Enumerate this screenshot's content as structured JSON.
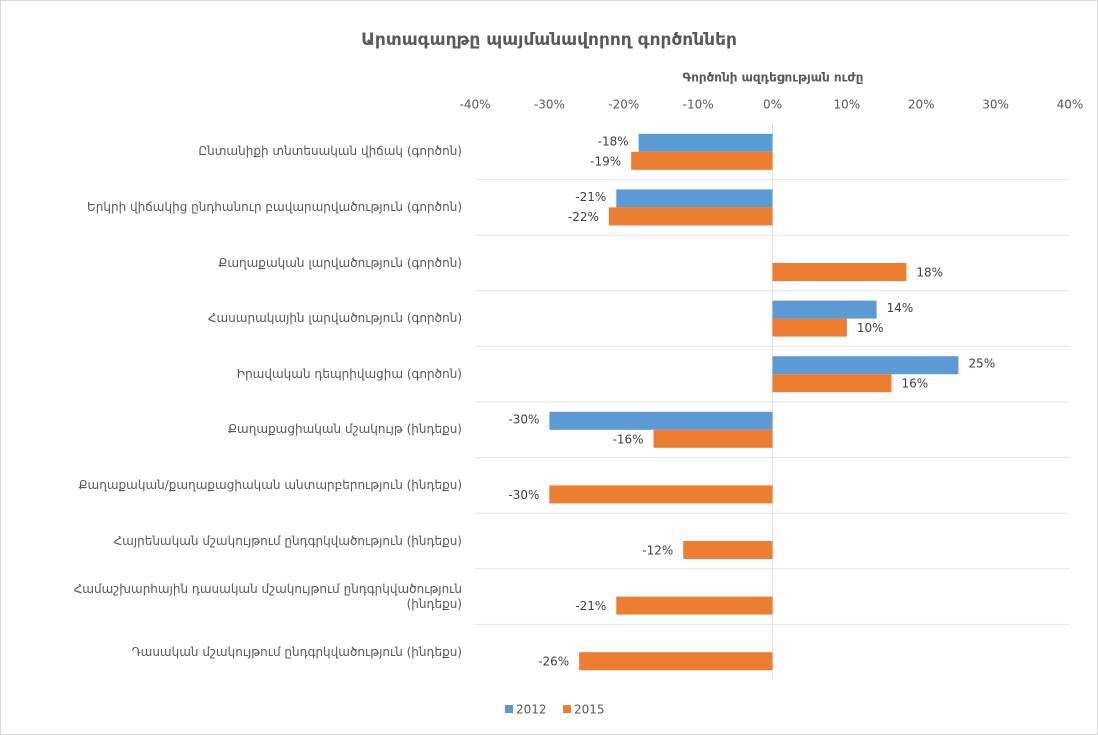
{
  "chart_data": {
    "type": "bar",
    "orientation": "horizontal",
    "title": "Արտագաղթը պայմանավորող գործոններ",
    "x_label": "Գործոնի ազդեցության ուժը",
    "categories": [
      "Ընտանիքի տնտեսական վիճակ (գործոն)",
      "Երկրի վիճակից ընդհանուր բավարարվածություն (գործոն)",
      "Քաղաքական լարվածություն (գործոն)",
      "Հասարակային լարվածություն (գործոն)",
      "Իրավական դեպրիվացիա (գործոն)",
      "Քաղաքացիական մշակույթ (ինդեքս)",
      "Քաղաքական/քաղաքացիական անտարբերություն (ինդեքս)",
      "Հայրենական մշակույթում ընդգրկվածություն (ինդեքս)",
      "Համաշխարհային դասական մշակույթում ընդգրկվածություն (ինդեքս)",
      "Դասական մշակույթում ընդգրկվածություն (ինդեքս)"
    ],
    "series": [
      {
        "name": "2012",
        "color": "#5b9bd5",
        "values": [
          -18,
          -21,
          null,
          14,
          25,
          -30,
          null,
          null,
          null,
          null
        ],
        "value_labels": [
          "-18%",
          "-21%",
          null,
          "14%",
          "25%",
          "-30%",
          null,
          null,
          null,
          null
        ]
      },
      {
        "name": "2015",
        "color": "#ed7d31",
        "values": [
          -19,
          -22,
          18,
          10,
          16,
          -16,
          -30,
          -12,
          -21,
          -26
        ],
        "value_labels": [
          "-19%",
          "-22%",
          "18%",
          "10%",
          "16%",
          "-16%",
          "-30%",
          "-12%",
          "-21%",
          "-26%"
        ]
      }
    ],
    "xlim": [
      -40,
      40
    ],
    "xticks": [
      {
        "value": -40,
        "label": "-40%"
      },
      {
        "value": -30,
        "label": "-30%"
      },
      {
        "value": -20,
        "label": "-20%"
      },
      {
        "value": -10,
        "label": "-10%"
      },
      {
        "value": 0,
        "label": "0%"
      },
      {
        "value": 10,
        "label": "10%"
      },
      {
        "value": 20,
        "label": "20%"
      },
      {
        "value": 30,
        "label": "30%"
      },
      {
        "value": 40,
        "label": "40%"
      }
    ],
    "legend": "bottom"
  }
}
